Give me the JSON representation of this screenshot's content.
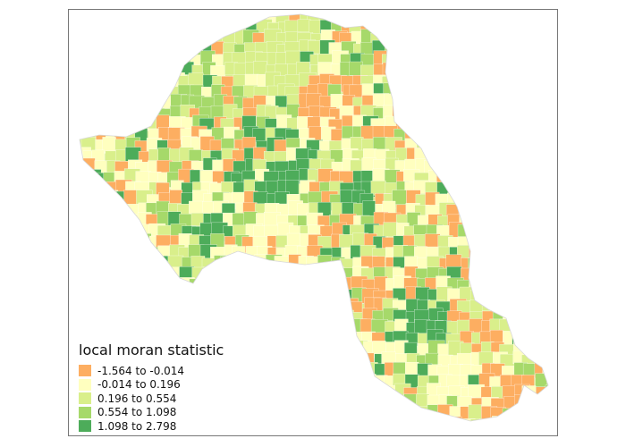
{
  "map": {
    "title": "",
    "boundary_color": "#ffffff",
    "frame_color": "#777777"
  },
  "legend": {
    "title": "local moran statistic",
    "classes": [
      {
        "label": "-1.564 to -0.014",
        "color": "#fdae61"
      },
      {
        "label": "-0.014 to 0.196",
        "color": "#ffffbf"
      },
      {
        "label": "0.196 to 0.554",
        "color": "#d9ef8b"
      },
      {
        "label": "0.554 to 1.098",
        "color": "#a6d96a"
      },
      {
        "label": "1.098 to 2.798",
        "color": "#4dac5a"
      }
    ]
  }
}
